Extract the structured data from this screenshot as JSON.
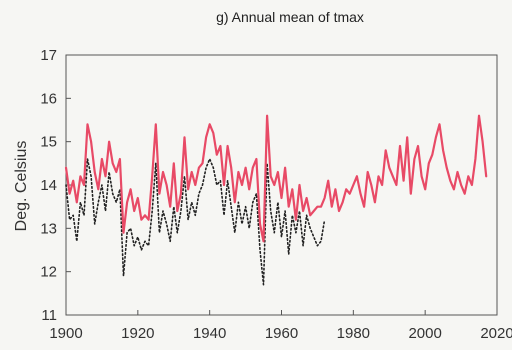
{
  "chart_data": {
    "type": "line",
    "title": "g) Annual mean of tmax",
    "xlabel": "",
    "ylabel": "Deg. Celsius",
    "xlim": [
      1900,
      2020
    ],
    "ylim": [
      11,
      17
    ],
    "x_ticks": [
      1900,
      1920,
      1940,
      1960,
      1980,
      2000,
      2020
    ],
    "y_ticks": [
      11,
      12,
      13,
      14,
      15,
      16,
      17
    ],
    "grid": false,
    "legend": "none",
    "series": [
      {
        "style": "solid",
        "color": "#e84a66",
        "x": [
          1900,
          1901,
          1902,
          1903,
          1904,
          1905,
          1906,
          1907,
          1908,
          1909,
          1910,
          1911,
          1912,
          1913,
          1914,
          1915,
          1916,
          1917,
          1918,
          1919,
          1920,
          1921,
          1922,
          1923,
          1924,
          1925,
          1926,
          1927,
          1928,
          1929,
          1930,
          1931,
          1932,
          1933,
          1934,
          1935,
          1936,
          1937,
          1938,
          1939,
          1940,
          1941,
          1942,
          1943,
          1944,
          1945,
          1946,
          1947,
          1948,
          1949,
          1950,
          1951,
          1952,
          1953,
          1954,
          1955,
          1956,
          1957,
          1958,
          1959,
          1960,
          1961,
          1962,
          1963,
          1964,
          1965,
          1966,
          1967,
          1968,
          1969,
          1970,
          1971,
          1972,
          1973,
          1974,
          1975,
          1976,
          1977,
          1978,
          1979,
          1980,
          1981,
          1982,
          1983,
          1984,
          1985,
          1986,
          1987,
          1988,
          1989,
          1990,
          1991,
          1992,
          1993,
          1994,
          1995,
          1996,
          1997,
          1998,
          1999,
          2000,
          2001,
          2002,
          2003,
          2004,
          2005,
          2006,
          2007,
          2008,
          2009,
          2010,
          2011,
          2012,
          2013,
          2014,
          2015,
          2016,
          2017
        ],
        "values": [
          14.4,
          13.8,
          14.1,
          13.6,
          14.2,
          14.0,
          15.4,
          15.0,
          14.3,
          13.9,
          14.6,
          14.2,
          15.0,
          14.5,
          14.3,
          14.6,
          12.9,
          13.6,
          13.9,
          13.4,
          13.7,
          13.2,
          13.3,
          13.2,
          14.2,
          15.4,
          13.8,
          14.3,
          14.0,
          13.5,
          14.5,
          13.4,
          13.8,
          15.1,
          13.9,
          14.3,
          14.0,
          14.4,
          14.5,
          15.1,
          15.4,
          15.2,
          14.7,
          14.9,
          14.0,
          14.9,
          14.4,
          13.6,
          14.3,
          14.0,
          14.4,
          13.9,
          14.4,
          14.6,
          13.1,
          12.7,
          15.6,
          14.2,
          14.0,
          14.3,
          13.7,
          14.4,
          13.5,
          13.9,
          13.2,
          14.0,
          13.4,
          13.7,
          13.3,
          13.4,
          13.5,
          13.5,
          13.7,
          14.1,
          13.5,
          13.9,
          13.4,
          13.6,
          13.9,
          13.8,
          14.0,
          14.2,
          13.8,
          13.5,
          14.3,
          14.0,
          13.6,
          14.2,
          14.0,
          14.8,
          14.4,
          14.2,
          14.0,
          14.9,
          14.1,
          15.1,
          13.8,
          14.6,
          14.9,
          14.2,
          13.9,
          14.5,
          14.7,
          15.1,
          15.4,
          14.8,
          14.4,
          14.1,
          13.9,
          14.3,
          14.0,
          13.8,
          14.2,
          14.0,
          14.6,
          15.6,
          15.0,
          14.2
        ]
      },
      {
        "style": "dotted",
        "color": "#222222",
        "x": [
          1900,
          1901,
          1902,
          1903,
          1904,
          1905,
          1906,
          1907,
          1908,
          1909,
          1910,
          1911,
          1912,
          1913,
          1914,
          1915,
          1916,
          1917,
          1918,
          1919,
          1920,
          1921,
          1922,
          1923,
          1924,
          1925,
          1926,
          1927,
          1928,
          1929,
          1930,
          1931,
          1932,
          1933,
          1934,
          1935,
          1936,
          1937,
          1938,
          1939,
          1940,
          1941,
          1942,
          1943,
          1944,
          1945,
          1946,
          1947,
          1948,
          1949,
          1950,
          1951,
          1952,
          1953,
          1954,
          1955,
          1956,
          1957,
          1958,
          1959,
          1960,
          1961,
          1962,
          1963,
          1964,
          1965,
          1966,
          1967,
          1968,
          1969,
          1970,
          1971,
          1972
        ],
        "values": [
          14.0,
          13.2,
          13.3,
          12.7,
          13.6,
          13.3,
          14.6,
          14.2,
          13.1,
          13.6,
          14.0,
          13.4,
          14.3,
          13.8,
          13.6,
          13.9,
          11.9,
          12.9,
          13.0,
          12.6,
          12.8,
          12.5,
          12.7,
          12.6,
          13.4,
          14.5,
          12.9,
          13.4,
          13.1,
          12.7,
          13.5,
          12.9,
          13.4,
          14.2,
          13.2,
          13.6,
          13.3,
          13.8,
          14.0,
          14.4,
          14.6,
          14.4,
          14.0,
          14.1,
          13.3,
          14.1,
          13.5,
          12.9,
          13.6,
          13.1,
          13.5,
          13.0,
          13.6,
          13.8,
          12.5,
          11.7,
          14.5,
          13.4,
          12.9,
          13.6,
          12.8,
          13.4,
          12.4,
          13.3,
          12.9,
          13.4,
          12.6,
          13.3,
          13.0,
          12.8,
          12.6,
          12.7,
          13.2
        ]
      }
    ]
  }
}
